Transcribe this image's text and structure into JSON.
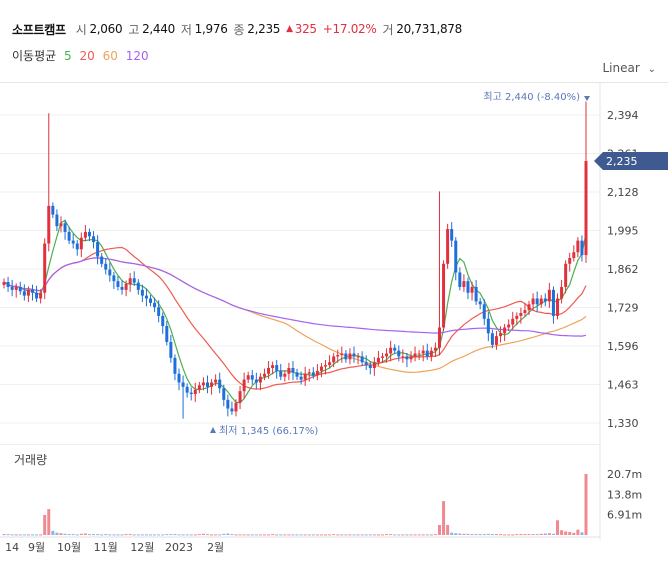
{
  "header": {
    "name": "소프트캠프",
    "open_label": "시",
    "open": "2,060",
    "high_label": "고",
    "high": "2,440",
    "low_label": "저",
    "low": "1,976",
    "close_label": "종",
    "close": "2,235",
    "change": "325",
    "change_pct": "+17.02%",
    "volume_label": "거",
    "volume": "20,731,878"
  },
  "ma_legend": {
    "label": "이동평균",
    "periods": [
      {
        "text": "5",
        "color": "#4caf50"
      },
      {
        "text": "20",
        "color": "#f05a4f"
      },
      {
        "text": "60",
        "color": "#f0a35a"
      },
      {
        "text": "120",
        "color": "#a463f2"
      }
    ]
  },
  "scale_mode": "Linear",
  "volume_title": "거래량",
  "colors": {
    "up": "#e0323e",
    "down": "#1e6fd9",
    "price_tag": "#3f5a91",
    "annotation": "#5a78b8"
  },
  "chart_data": {
    "type": "candlestick",
    "price_ticks": [
      "2,394",
      "2,261",
      "2,128",
      "1,995",
      "1,862",
      "1,729",
      "1,596",
      "1,463",
      "1,330"
    ],
    "volume_ticks": [
      "20.7m",
      "13.8m",
      "6.91m"
    ],
    "x_labels": [
      "14",
      "9월",
      "10월",
      "11월",
      "12월",
      "2023",
      "2월"
    ],
    "last_price": "2,235",
    "high_note": {
      "label": "최고",
      "value": "2,440",
      "pct": "(-8.40%)"
    },
    "low_note": {
      "label": "최저",
      "value": "1,345",
      "pct": "(66.17%)"
    },
    "series": [
      {
        "name": "5",
        "color": "#4caf50"
      },
      {
        "name": "20",
        "color": "#f05a4f"
      },
      {
        "name": "60",
        "color": "#f0a35a"
      },
      {
        "name": "120",
        "color": "#a463f2"
      }
    ],
    "closes": [
      1817,
      1800,
      1790,
      1800,
      1785,
      1770,
      1790,
      1780,
      1760,
      1780,
      1950,
      2080,
      2050,
      2010,
      2020,
      1990,
      1960,
      1950,
      1930,
      1970,
      1990,
      1975,
      1955,
      1905,
      1880,
      1860,
      1840,
      1820,
      1800,
      1790,
      1810,
      1830,
      1815,
      1790,
      1770,
      1760,
      1745,
      1730,
      1700,
      1665,
      1610,
      1555,
      1500,
      1470,
      1455,
      1435,
      1430,
      1445,
      1460,
      1470,
      1455,
      1470,
      1480,
      1450,
      1410,
      1380,
      1370,
      1400,
      1440,
      1480,
      1495,
      1480,
      1470,
      1490,
      1500,
      1520,
      1530,
      1510,
      1490,
      1500,
      1520,
      1505,
      1490,
      1480,
      1500,
      1505,
      1495,
      1510,
      1525,
      1530,
      1540,
      1560,
      1565,
      1570,
      1550,
      1570,
      1560,
      1560,
      1540,
      1530,
      1520,
      1540,
      1555,
      1560,
      1570,
      1590,
      1580,
      1560,
      1560,
      1550,
      1560,
      1570,
      1570,
      1580,
      1560,
      1580,
      1590,
      1660,
      1880,
      2000,
      1960,
      1850,
      1800,
      1820,
      1780,
      1800,
      1750,
      1740,
      1690,
      1640,
      1600,
      1630,
      1640,
      1660,
      1670,
      1690,
      1700,
      1710,
      1720,
      1740,
      1760,
      1740,
      1760,
      1750,
      1790,
      1700,
      1760,
      1800,
      1880,
      1900,
      1920,
      1960,
      1910,
      2235
    ],
    "volumes": [
      0.3,
      0.3,
      0.2,
      0.2,
      0.2,
      0.2,
      0.2,
      0.2,
      0.2,
      0.2,
      6.8,
      8.8,
      1.4,
      0.8,
      0.6,
      0.4,
      0.3,
      0.3,
      0.2,
      0.4,
      0.5,
      0.3,
      0.3,
      0.3,
      0.2,
      0.3,
      0.2,
      0.2,
      0.2,
      0.2,
      0.3,
      0.3,
      0.2,
      0.2,
      0.2,
      0.2,
      0.2,
      0.2,
      0.2,
      0.2,
      0.3,
      0.3,
      0.3,
      0.2,
      0.2,
      0.2,
      0.2,
      0.2,
      0.3,
      0.4,
      0.3,
      0.2,
      0.2,
      0.2,
      0.4,
      0.5,
      0.3,
      0.2,
      0.2,
      0.2,
      0.2,
      0.2,
      0.2,
      0.2,
      0.2,
      0.2,
      0.3,
      0.2,
      0.2,
      0.2,
      0.2,
      0.2,
      0.2,
      0.2,
      0.2,
      0.2,
      0.2,
      0.2,
      0.2,
      0.2,
      0.2,
      0.3,
      0.2,
      0.2,
      0.2,
      0.2,
      0.2,
      0.2,
      0.2,
      0.2,
      0.2,
      0.2,
      0.2,
      0.2,
      0.3,
      0.3,
      0.2,
      0.2,
      0.2,
      0.2,
      0.2,
      0.2,
      0.2,
      0.2,
      0.2,
      0.2,
      0.3,
      3.4,
      11.5,
      3.4,
      0.8,
      0.6,
      0.5,
      0.4,
      0.4,
      0.3,
      0.3,
      0.3,
      0.3,
      0.4,
      0.3,
      0.3,
      0.3,
      0.2,
      0.2,
      0.2,
      0.3,
      0.3,
      0.3,
      0.3,
      0.3,
      0.3,
      0.4,
      0.5,
      0.6,
      0.4,
      5.0,
      1.6,
      1.2,
      1.0,
      0.7,
      1.8,
      0.9,
      20.7
    ]
  }
}
